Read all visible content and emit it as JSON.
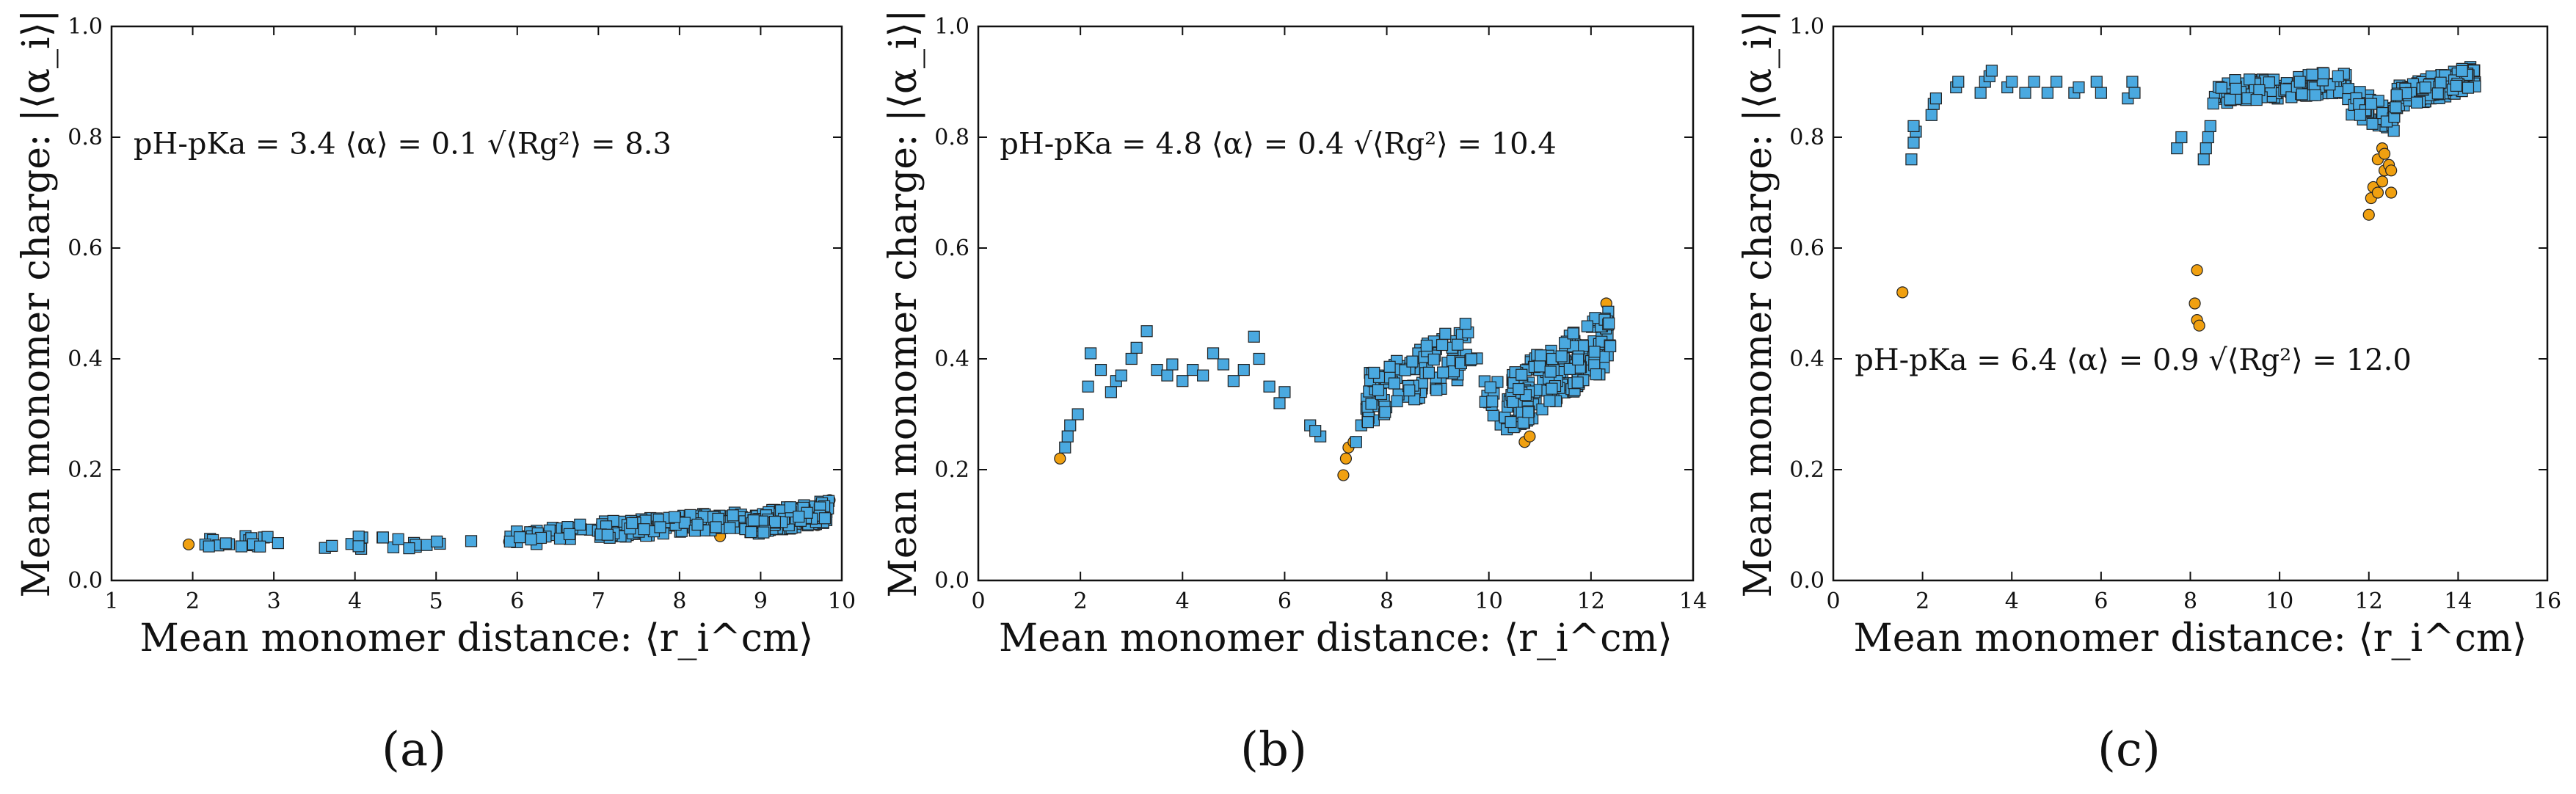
{
  "figure": {
    "panel_labels": [
      "(a)",
      "(b)",
      "(c)"
    ]
  },
  "colors": {
    "square": "#4aa9e0",
    "circle": "#f0a010",
    "edge": "#222222"
  },
  "chart_data": [
    {
      "type": "scatter",
      "panel": "(a)",
      "xlabel": "Mean monomer distance: ⟨r_i^cm⟩",
      "ylabel": "Mean monomer charge: |⟨α_i⟩|",
      "xlim": [
        1,
        10
      ],
      "ylim": [
        0.0,
        1.0
      ],
      "xticks": [
        "1",
        "2",
        "3",
        "4",
        "5",
        "6",
        "7",
        "8",
        "9",
        "10"
      ],
      "yticks": [
        "0.0",
        "0.2",
        "0.4",
        "0.6",
        "0.8",
        "1.0"
      ],
      "annotation": "pH-pKa = 3.4    ⟨α⟩ = 0.1    √⟨Rg²⟩ = 8.3",
      "annotation_parts": [
        "pH-pK",
        "a",
        " = 3.4",
        "⟨α⟩ = 0.1",
        "⟨R",
        "g",
        "2",
        "⟩",
        " = 8.3"
      ],
      "annotation_position": "upper-left",
      "series": [
        {
          "name": "squares",
          "marker": "square",
          "segments": [
            {
              "x": [
                2.05,
                3.0
              ],
              "y": [
                0.065,
                0.07
              ],
              "n": 18,
              "spread": 0.012
            },
            {
              "x": [
                3.0,
                5.5
              ],
              "y": [
                0.066,
                0.072
              ],
              "n": 20,
              "spread": 0.012
            },
            {
              "x": [
                5.9,
                7.0
              ],
              "y": [
                0.075,
                0.09
              ],
              "n": 35,
              "spread": 0.014
            },
            {
              "x": [
                7.0,
                8.8
              ],
              "y": [
                0.09,
                0.11
              ],
              "n": 130,
              "spread": 0.016
            },
            {
              "x": [
                8.8,
                9.85
              ],
              "y": [
                0.1,
                0.125
              ],
              "n": 140,
              "spread": 0.02
            }
          ]
        },
        {
          "name": "circles",
          "marker": "circle",
          "points": [
            [
              1.95,
              0.065
            ],
            [
              5.9,
              0.07
            ],
            [
              6.0,
              0.085
            ],
            [
              8.5,
              0.08
            ],
            [
              9.4,
              0.095
            ],
            [
              9.7,
              0.1
            ],
            [
              9.75,
              0.115
            ],
            [
              9.8,
              0.14
            ],
            [
              9.85,
              0.145
            ],
            [
              9.55,
              0.11
            ]
          ]
        }
      ]
    },
    {
      "type": "scatter",
      "panel": "(b)",
      "xlabel": "Mean monomer distance: ⟨r_i^cm⟩",
      "ylabel": "Mean monomer charge: |⟨α_i⟩|",
      "xlim": [
        0,
        14
      ],
      "ylim": [
        0.0,
        1.0
      ],
      "xticks": [
        "0",
        "2",
        "4",
        "6",
        "8",
        "10",
        "12",
        "14"
      ],
      "yticks": [
        "0.0",
        "0.2",
        "0.4",
        "0.6",
        "0.8",
        "1.0"
      ],
      "annotation": "pH-pKa = 4.8    ⟨α⟩ = 0.4    √⟨Rg²⟩ = 10.4",
      "annotation_parts": [
        "pH-pK",
        "a",
        " = 4.8",
        "⟨α⟩ = 0.4",
        "⟨R",
        "g",
        "2",
        "⟩",
        " = 10.4"
      ],
      "annotation_position": "upper-left",
      "series": [
        {
          "name": "squares",
          "marker": "square",
          "points": [
            [
              1.7,
              0.24
            ],
            [
              1.8,
              0.28
            ],
            [
              1.75,
              0.26
            ],
            [
              1.95,
              0.3
            ],
            [
              2.15,
              0.35
            ],
            [
              2.2,
              0.41
            ],
            [
              2.4,
              0.38
            ],
            [
              2.6,
              0.34
            ],
            [
              2.7,
              0.36
            ],
            [
              2.8,
              0.37
            ],
            [
              3.0,
              0.4
            ],
            [
              3.1,
              0.42
            ],
            [
              3.3,
              0.45
            ],
            [
              3.5,
              0.38
            ],
            [
              3.7,
              0.37
            ],
            [
              3.8,
              0.39
            ],
            [
              4.0,
              0.36
            ],
            [
              4.2,
              0.38
            ],
            [
              4.4,
              0.37
            ],
            [
              4.6,
              0.41
            ],
            [
              4.8,
              0.39
            ],
            [
              5.0,
              0.36
            ],
            [
              5.2,
              0.38
            ],
            [
              5.4,
              0.44
            ],
            [
              5.5,
              0.4
            ],
            [
              5.7,
              0.35
            ],
            [
              5.9,
              0.32
            ],
            [
              6.0,
              0.34
            ],
            [
              6.5,
              0.28
            ],
            [
              6.7,
              0.26
            ],
            [
              6.6,
              0.27
            ],
            [
              7.4,
              0.25
            ],
            [
              7.5,
              0.28
            ],
            [
              7.6,
              0.31
            ],
            [
              7.8,
              0.33
            ]
          ],
          "segments": [
            {
              "x": [
                7.6,
                9.6
              ],
              "y": [
                0.33,
                0.42
              ],
              "n": 110,
              "spread": 0.05
            },
            {
              "x": [
                9.6,
                10.4
              ],
              "y": [
                0.38,
                0.3
              ],
              "n": 20,
              "spread": 0.04
            },
            {
              "x": [
                10.4,
                12.4
              ],
              "y": [
                0.32,
                0.44
              ],
              "n": 200,
              "spread": 0.055
            }
          ]
        },
        {
          "name": "circles",
          "marker": "circle",
          "points": [
            [
              1.6,
              0.22
            ],
            [
              7.15,
              0.19
            ],
            [
              7.2,
              0.22
            ],
            [
              7.25,
              0.24
            ],
            [
              7.35,
              0.25
            ],
            [
              10.6,
              0.3
            ],
            [
              10.7,
              0.25
            ],
            [
              10.8,
              0.26
            ],
            [
              10.9,
              0.32
            ],
            [
              10.65,
              0.33
            ],
            [
              12.3,
              0.5
            ],
            [
              12.25,
              0.45
            ],
            [
              12.3,
              0.42
            ]
          ]
        }
      ]
    },
    {
      "type": "scatter",
      "panel": "(c)",
      "xlabel": "Mean monomer distance: ⟨r_i^cm⟩",
      "ylabel": "Mean monomer charge: |⟨α_i⟩|",
      "xlim": [
        0,
        16
      ],
      "ylim": [
        0.0,
        1.0
      ],
      "xticks": [
        "0",
        "2",
        "4",
        "6",
        "8",
        "10",
        "12",
        "14",
        "16"
      ],
      "yticks": [
        "0.0",
        "0.2",
        "0.4",
        "0.6",
        "0.8",
        "1.0"
      ],
      "annotation": "pH-pKa = 6.4    ⟨α⟩ = 0.9    √⟨Rg²⟩ = 12.0",
      "annotation_parts": [
        "pH-pK",
        "a",
        " = 6.4",
        "⟨α⟩ = 0.9",
        "⟨R",
        "g",
        "2",
        "⟩",
        " = 12.0"
      ],
      "annotation_position": "lower-left",
      "series": [
        {
          "name": "squares",
          "marker": "square",
          "points": [
            [
              1.75,
              0.76
            ],
            [
              1.8,
              0.79
            ],
            [
              1.85,
              0.81
            ],
            [
              1.8,
              0.82
            ],
            [
              2.2,
              0.84
            ],
            [
              2.25,
              0.86
            ],
            [
              2.3,
              0.87
            ],
            [
              2.75,
              0.89
            ],
            [
              2.8,
              0.9
            ],
            [
              3.3,
              0.88
            ],
            [
              3.4,
              0.9
            ],
            [
              3.5,
              0.91
            ],
            [
              3.55,
              0.92
            ],
            [
              3.9,
              0.89
            ],
            [
              4.0,
              0.9
            ],
            [
              4.3,
              0.88
            ],
            [
              4.5,
              0.9
            ],
            [
              4.8,
              0.88
            ],
            [
              5.0,
              0.9
            ],
            [
              5.4,
              0.88
            ],
            [
              5.5,
              0.89
            ],
            [
              5.9,
              0.9
            ],
            [
              6.0,
              0.88
            ],
            [
              6.6,
              0.87
            ],
            [
              6.7,
              0.9
            ],
            [
              6.75,
              0.88
            ],
            [
              7.7,
              0.78
            ],
            [
              7.8,
              0.8
            ],
            [
              8.3,
              0.76
            ],
            [
              8.35,
              0.78
            ],
            [
              8.4,
              0.8
            ],
            [
              8.45,
              0.82
            ]
          ],
          "segments": [
            {
              "x": [
                8.5,
                11.5
              ],
              "y": [
                0.88,
                0.9
              ],
              "n": 140,
              "spread": 0.02
            },
            {
              "x": [
                11.5,
                12.6
              ],
              "y": [
                0.87,
                0.83
              ],
              "n": 40,
              "spread": 0.025
            },
            {
              "x": [
                12.6,
                14.4
              ],
              "y": [
                0.87,
                0.91
              ],
              "n": 150,
              "spread": 0.022
            }
          ]
        },
        {
          "name": "circles",
          "marker": "circle",
          "points": [
            [
              1.55,
              0.52
            ],
            [
              8.15,
              0.56
            ],
            [
              8.1,
              0.5
            ],
            [
              8.15,
              0.47
            ],
            [
              8.2,
              0.46
            ],
            [
              12.0,
              0.66
            ],
            [
              12.05,
              0.69
            ],
            [
              12.1,
              0.71
            ],
            [
              12.2,
              0.7
            ],
            [
              12.3,
              0.72
            ],
            [
              12.35,
              0.74
            ],
            [
              12.45,
              0.75
            ],
            [
              12.5,
              0.7
            ],
            [
              12.5,
              0.74
            ],
            [
              12.3,
              0.78
            ],
            [
              12.2,
              0.76
            ],
            [
              12.35,
              0.77
            ]
          ]
        }
      ]
    }
  ]
}
